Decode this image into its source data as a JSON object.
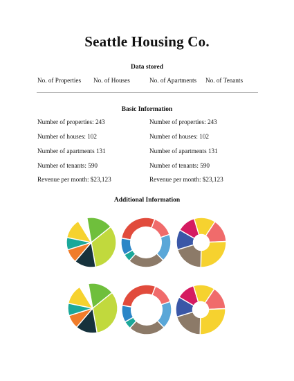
{
  "title": "Seattle Housing Co.",
  "data_stored": {
    "heading": "Data stored",
    "columns": [
      "No. of Properties",
      "No. of Houses",
      "No. of Apartments",
      "No. of Tenants"
    ]
  },
  "basic": {
    "heading": "Basic Information",
    "left": [
      "Number of properties: 243",
      "Number of houses: 102",
      "Number of apartments 131",
      "Number of tenants: 590",
      "Revenue per month: $23,123"
    ],
    "right": [
      "Number of properties: 243",
      "Number of houses: 102",
      "Number of apartments 131",
      "Number of tenants: 590",
      "Revenue per month: $23,123"
    ]
  },
  "additional": {
    "heading": "Additional Information",
    "charts": [
      {
        "kind": "pie",
        "colors": [
          "#6fbf3c",
          "#c1d93d",
          "#16323c",
          "#f07c2a",
          "#1ba89a",
          "#f6d22f"
        ],
        "fractions": [
          0.17,
          0.33,
          0.14,
          0.09,
          0.08,
          0.13
        ]
      },
      {
        "kind": "donut",
        "colors": [
          "#e14b3c",
          "#f06b6b",
          "#5aa7d8",
          "#8c7a68",
          "#1ba89a",
          "#2b86c7"
        ],
        "fractions": [
          0.28,
          0.14,
          0.18,
          0.24,
          0.05,
          0.11
        ]
      },
      {
        "kind": "donut-small-hole",
        "colors": [
          "#d51b61",
          "#f6d22f",
          "#f06b6b",
          "#f6d22f",
          "#8c7a68",
          "#3a57a7"
        ],
        "fractions": [
          0.12,
          0.14,
          0.15,
          0.26,
          0.2,
          0.13
        ]
      },
      {
        "kind": "pie",
        "colors": [
          "#6fbf3c",
          "#c1d93d",
          "#16323c",
          "#f07c2a",
          "#1ba89a",
          "#f6d22f"
        ],
        "fractions": [
          0.17,
          0.33,
          0.14,
          0.09,
          0.08,
          0.13
        ]
      },
      {
        "kind": "donut",
        "colors": [
          "#e14b3c",
          "#f06b6b",
          "#5aa7d8",
          "#8c7a68",
          "#1ba89a",
          "#2b86c7"
        ],
        "fractions": [
          0.28,
          0.14,
          0.18,
          0.24,
          0.05,
          0.11
        ]
      },
      {
        "kind": "donut-small-hole",
        "colors": [
          "#d51b61",
          "#f6d22f",
          "#f06b6b",
          "#f6d22f",
          "#8c7a68",
          "#3a57a7"
        ],
        "fractions": [
          0.12,
          0.14,
          0.15,
          0.26,
          0.2,
          0.13
        ]
      }
    ]
  }
}
